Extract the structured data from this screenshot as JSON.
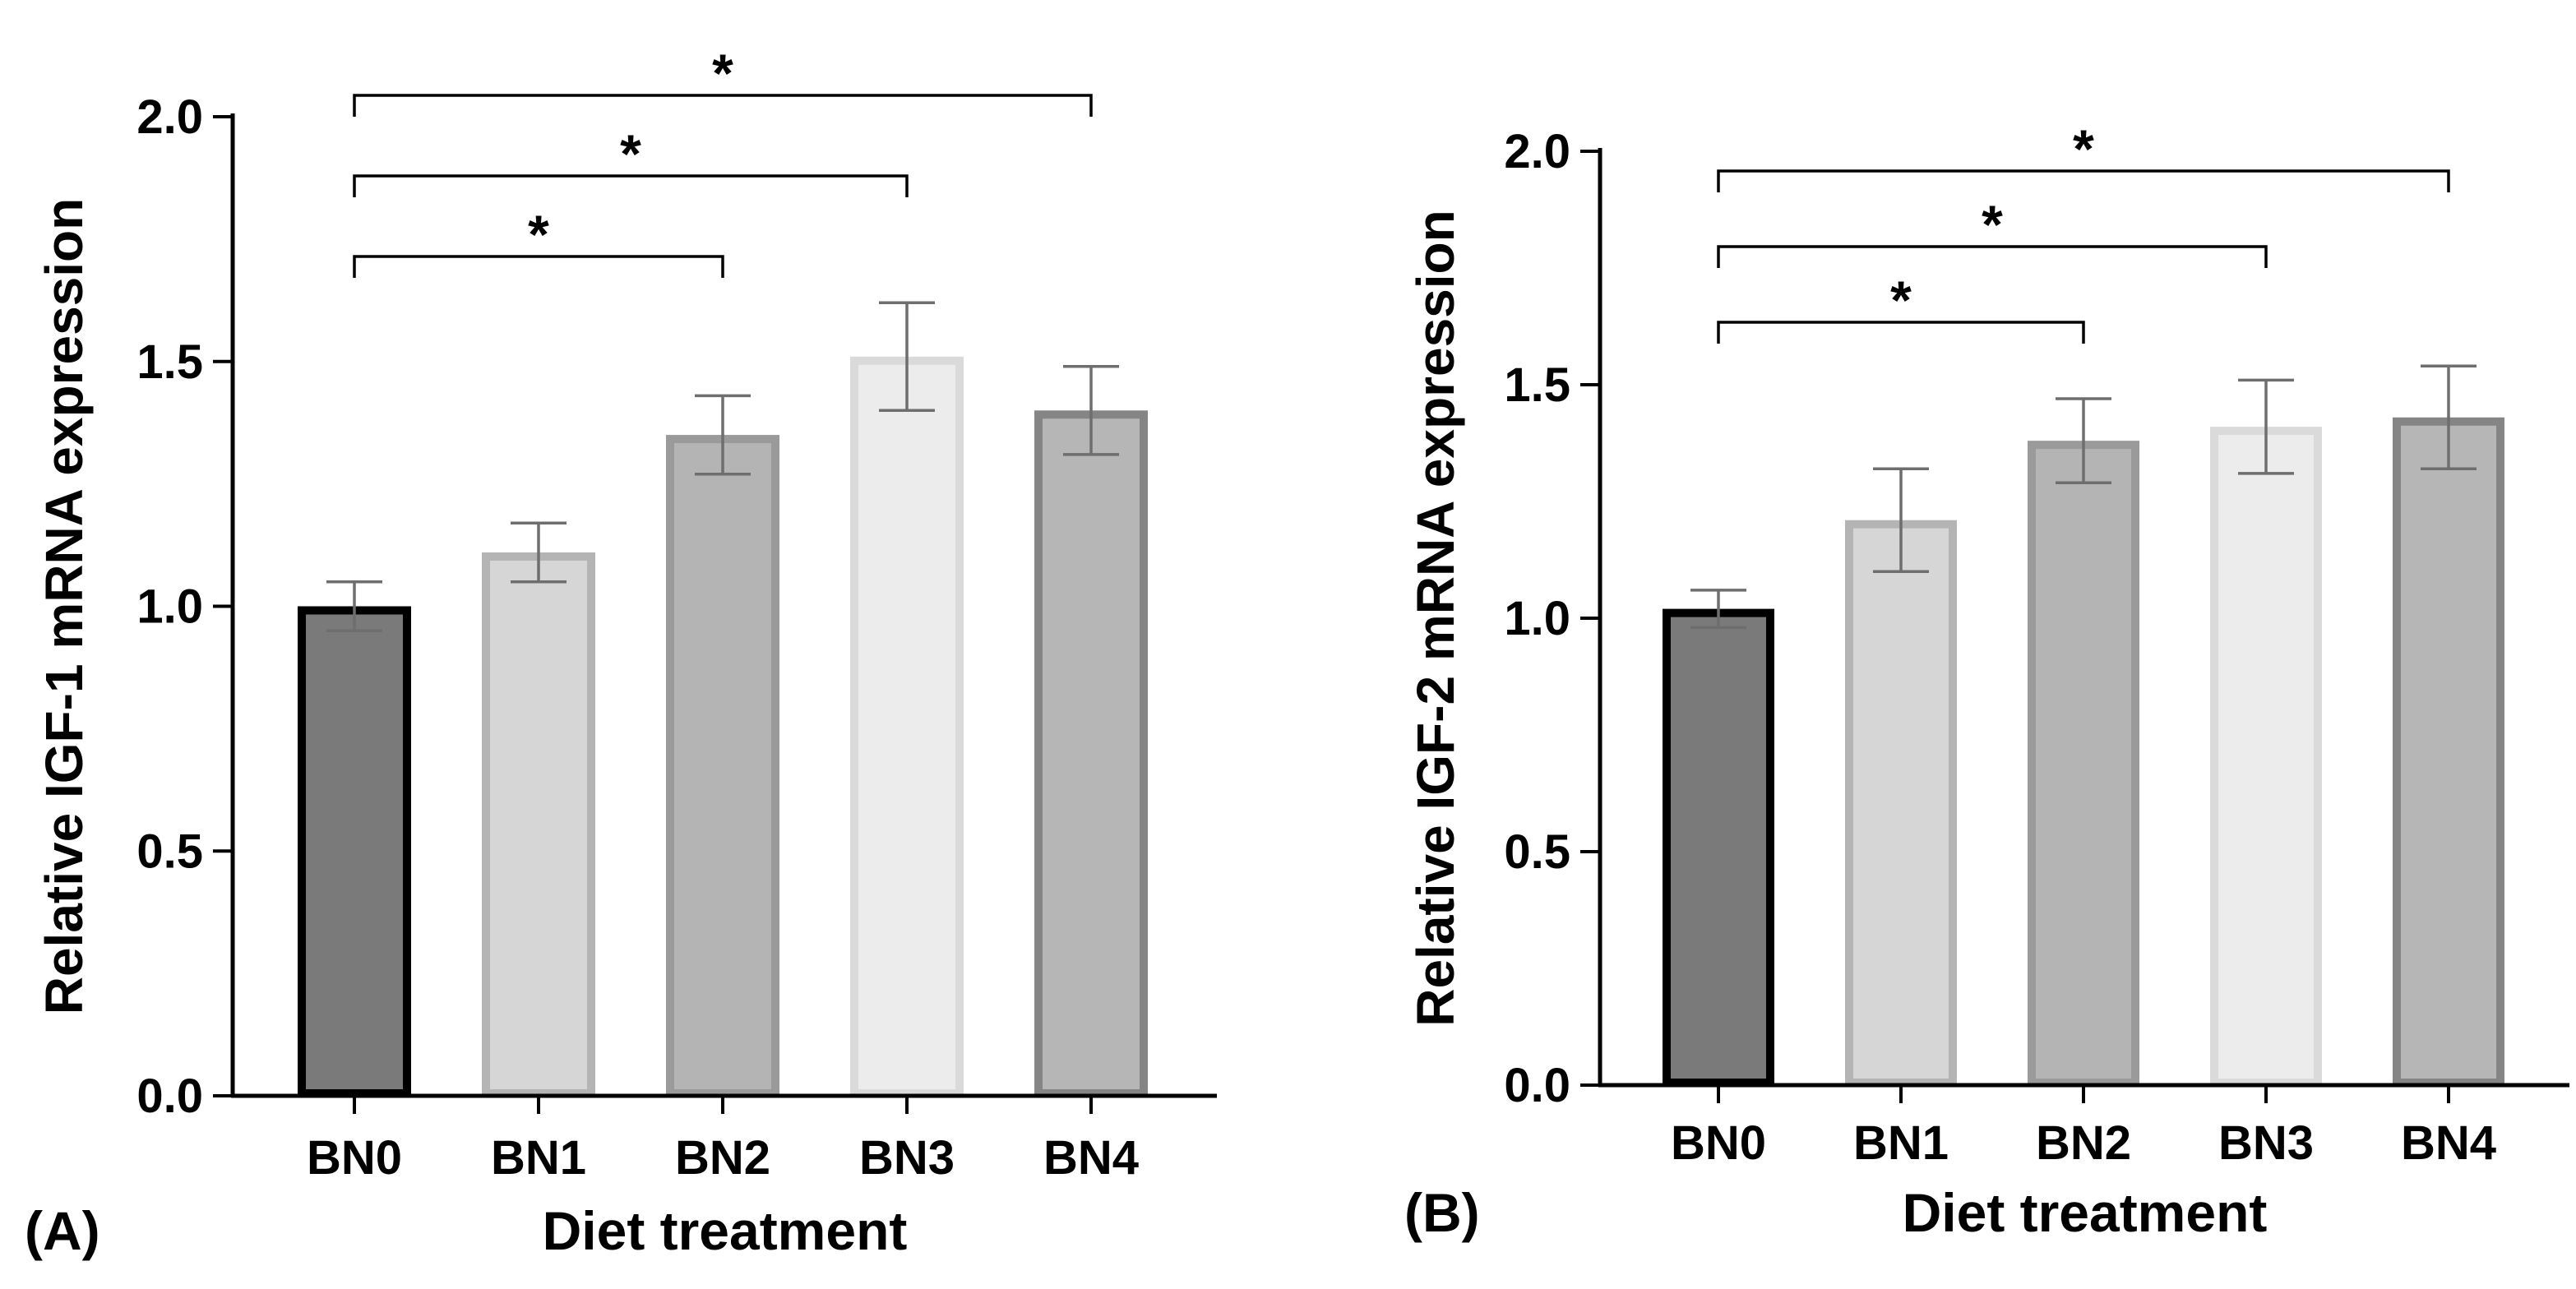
{
  "colors": {
    "axis": "#000000",
    "error_bar": "#6e6e6e",
    "bar_styles": [
      {
        "fill": "#7a7a7a",
        "stroke": "#000000"
      },
      {
        "fill": "#d6d6d6",
        "stroke": "#b4b4b4"
      },
      {
        "fill": "#b4b4b4",
        "stroke": "#9a9a9a"
      },
      {
        "fill": "#ececec",
        "stroke": "#dadada"
      },
      {
        "fill": "#b6b6b6",
        "stroke": "#858585"
      }
    ]
  },
  "chart_data": [
    {
      "panel": "(A)",
      "type": "bar",
      "categories": [
        "BN0",
        "BN1",
        "BN2",
        "BN3",
        "BN4"
      ],
      "values": [
        1.0,
        1.11,
        1.35,
        1.51,
        1.4
      ],
      "error": [
        0.05,
        0.06,
        0.08,
        0.11,
        0.09
      ],
      "ylabel": "Relative IGF-1 mRNA expression",
      "xlabel": "Diet treatment",
      "ylim": [
        0,
        2.0
      ],
      "yticks": [
        "0.0",
        "0.5",
        "1.0",
        "1.5",
        "2.0"
      ],
      "grid": false,
      "significance": [
        {
          "from": "BN0",
          "to": "BN2",
          "label": "*"
        },
        {
          "from": "BN0",
          "to": "BN3",
          "label": "*"
        },
        {
          "from": "BN0",
          "to": "BN4",
          "label": "*"
        }
      ]
    },
    {
      "panel": "(B)",
      "type": "bar",
      "categories": [
        "BN0",
        "BN1",
        "BN2",
        "BN3",
        "BN4"
      ],
      "values": [
        1.02,
        1.21,
        1.38,
        1.41,
        1.43
      ],
      "error": [
        0.04,
        0.11,
        0.09,
        0.1,
        0.11
      ],
      "ylabel": "Relative IGF-2 mRNA expression",
      "xlabel": "Diet treatment",
      "ylim": [
        0,
        2.0
      ],
      "yticks": [
        "0.0",
        "0.5",
        "1.0",
        "1.5",
        "2.0"
      ],
      "grid": false,
      "significance": [
        {
          "from": "BN0",
          "to": "BN2",
          "label": "*"
        },
        {
          "from": "BN0",
          "to": "BN3",
          "label": "*"
        },
        {
          "from": "BN0",
          "to": "BN4",
          "label": "*"
        }
      ]
    }
  ]
}
